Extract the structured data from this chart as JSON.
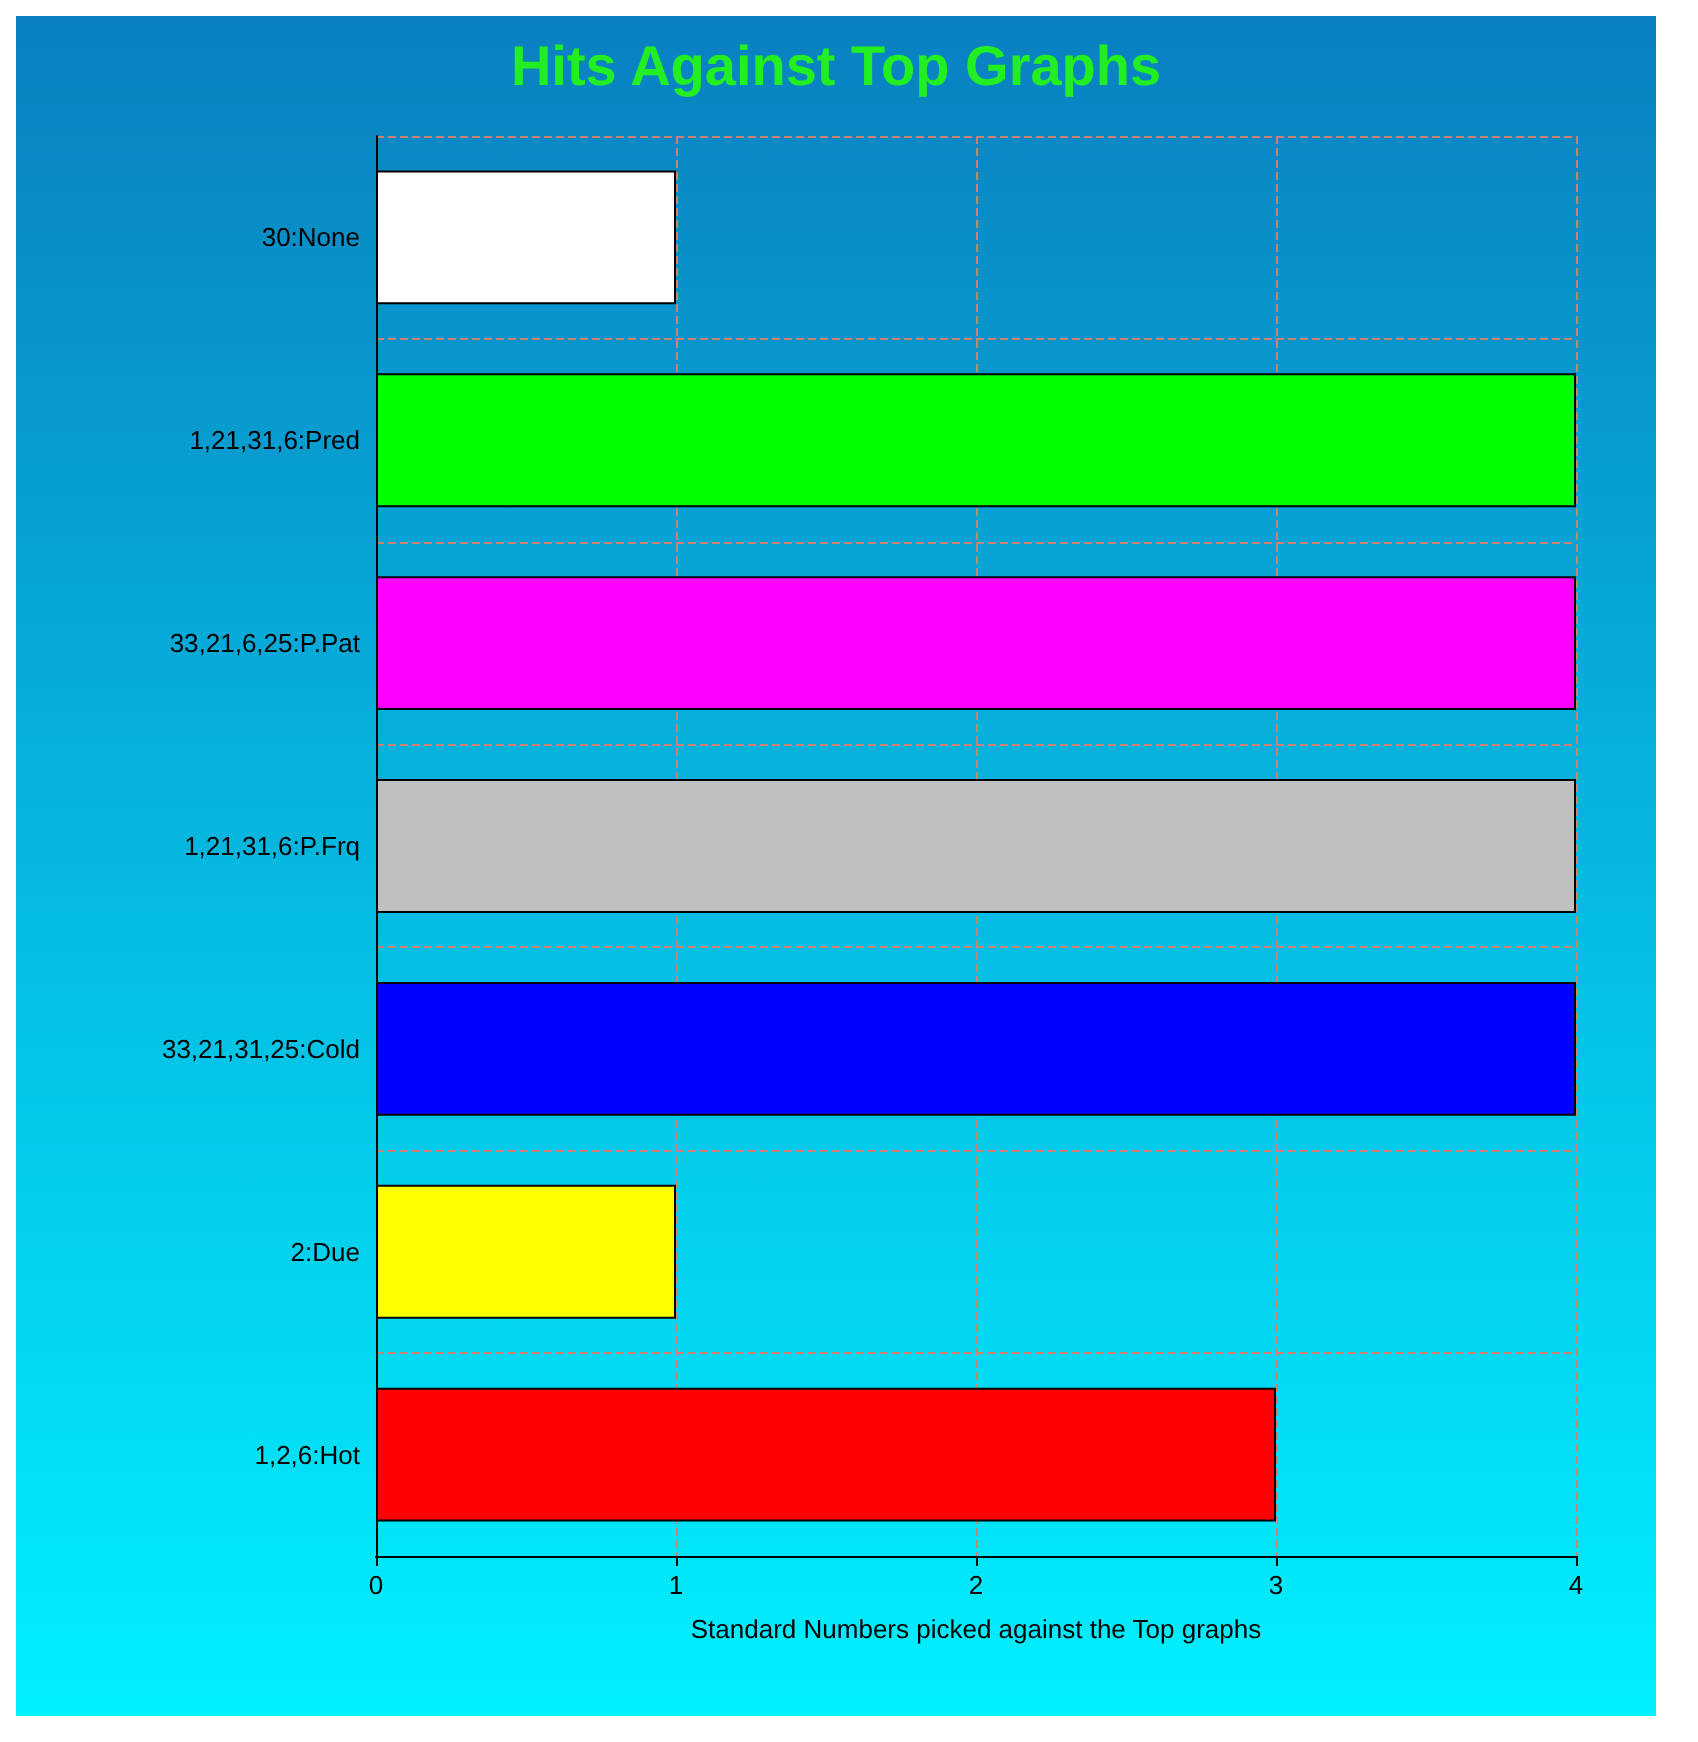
{
  "chart_data": {
    "type": "bar",
    "orientation": "horizontal",
    "title": "Hits Against Top Graphs",
    "xlabel": "Standard Numbers picked against the Top graphs",
    "categories": [
      "30:None",
      "1,21,31,6:Pred",
      "33,21,6,25:P.Pat",
      "1,21,31,6:P.Frq",
      "33,21,31,25:Cold",
      "2:Due",
      "1,2,6:Hot"
    ],
    "values": [
      1,
      4,
      4,
      4,
      4,
      1,
      3
    ],
    "colors": [
      "#ffffff",
      "#00ff00",
      "#ff00ff",
      "#c0c0c0",
      "#0000ff",
      "#ffff00",
      "#ff0000"
    ],
    "xlim": [
      0,
      4
    ],
    "xticks": [
      0,
      1,
      2,
      3,
      4
    ],
    "grid": true
  }
}
